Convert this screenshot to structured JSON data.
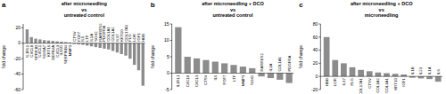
{
  "chart_data": [
    {
      "type": "bar",
      "annotations": [
        "a"
      ],
      "title": "after microneedling\nvs\nuntreated control",
      "y_label": "fold change",
      "color": "#8c8c8c",
      "categories": [
        "IL1RL1",
        "CXCL8",
        "SPRR1B",
        "CXCL1",
        "S100A7",
        "KRT16",
        "DEFB4A",
        "CXCL3",
        "IL36G",
        "SERPINB4",
        "MMP3",
        "CTSV",
        "FGF7",
        "IL6",
        "LTF",
        "IL1A",
        "SOX2",
        "RARRES2",
        "PDGFRA",
        "COL1A1",
        "COL1A2",
        "IL37",
        "KRT10",
        "COL17A1",
        "FLG",
        "LOR",
        "IGF1",
        "HBB"
      ],
      "values": [
        18,
        8,
        6,
        5,
        4,
        3.5,
        3,
        2.5,
        2,
        1.5,
        1,
        -1,
        -1.5,
        -2,
        -3,
        -4,
        -5,
        -6,
        -7,
        -8,
        -10,
        -12,
        -14,
        -16,
        -20,
        -28,
        -35,
        -55
      ],
      "ylim": [
        -60,
        25
      ],
      "yticks": [
        -60,
        -40,
        -20,
        0,
        20
      ]
    },
    {
      "type": "bar",
      "annotations": [
        "b"
      ],
      "title": "after microneedling + DCO\nvs\nuntreated control",
      "y_label": "fold change",
      "color": "#8c8c8c",
      "categories": [
        "IL1RL1",
        "CXCL8",
        "CXCL3",
        "CTSV",
        "IL6",
        "FGF7",
        "LTF",
        "MMP3",
        "SOX2",
        "RARRES2",
        "IL1A",
        "COL1A1",
        "PDGFRA"
      ],
      "values": [
        14,
        5,
        4.5,
        4,
        3.5,
        3,
        2.5,
        2,
        1.5,
        -1,
        -1.5,
        -2,
        -3
      ],
      "ylim": [
        -5,
        15
      ],
      "yticks": [
        -5,
        0,
        5,
        10,
        15
      ]
    },
    {
      "type": "bar",
      "annotations": [
        "c"
      ],
      "title": "after microneedling + DCO\nvs\nmicroneedling",
      "y_label": "fold change",
      "color": "#8c8c8c",
      "categories": [
        "HBB",
        "LOR",
        "IL37",
        "FLG",
        "COL17A1",
        "CTSV",
        "COL1A2",
        "COL1A1",
        "KRT10",
        "IGF1",
        "IL1B",
        "IL23",
        "IL1A",
        "IL6"
      ],
      "values": [
        60,
        25,
        20,
        14,
        10,
        8,
        6,
        5,
        4,
        3,
        -2,
        -3,
        -4,
        -8
      ],
      "ylim": [
        -20,
        80
      ],
      "yticks": [
        -20,
        0,
        20,
        40,
        60,
        80
      ]
    }
  ]
}
